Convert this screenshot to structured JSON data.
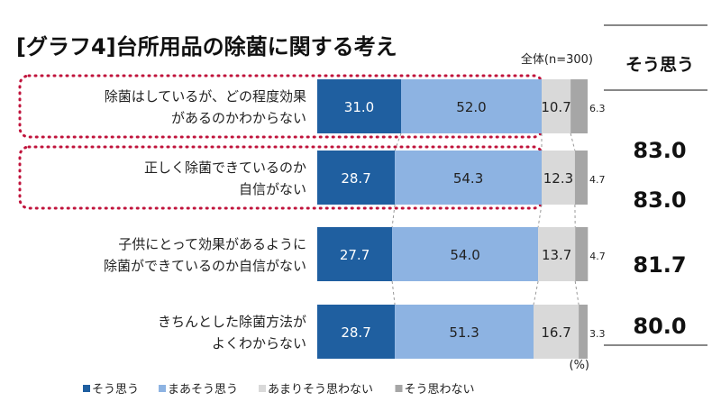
{
  "chart_data": {
    "type": "bar",
    "orientation": "horizontal-stacked",
    "title": "[グラフ4]台所用品の除菌に関する考え",
    "subtitle": "全体(n=300)",
    "unit_label": "(%)",
    "categories": [
      [
        "除菌はしているが、どの程度効果",
        "があるのかわからない"
      ],
      [
        "正しく除菌できているのか",
        "自信がない"
      ],
      [
        "子供にとって効果があるように",
        "除菌ができているのか自信がない"
      ],
      [
        "きちんとした除菌方法が",
        "よくわからない"
      ]
    ],
    "series": [
      {
        "name": "そう思う",
        "color": "#1f5fa0",
        "values": [
          31.0,
          28.7,
          27.7,
          28.7
        ]
      },
      {
        "name": "まあそう思う",
        "color": "#8db3e2",
        "values": [
          52.0,
          54.3,
          54.0,
          51.3
        ]
      },
      {
        "name": "あまりそう思わない",
        "color": "#d9d9d9",
        "values": [
          10.7,
          12.3,
          13.7,
          16.7
        ]
      },
      {
        "name": "そう思わない",
        "color": "#a6a6a6",
        "values": [
          6.3,
          4.7,
          4.7,
          3.3
        ]
      }
    ],
    "summary": {
      "header": "そう思う",
      "values": [
        "83.0",
        "83.0",
        "81.7",
        "80.0"
      ]
    },
    "highlighted_rows": [
      0,
      1
    ],
    "highlight_color": "#c0143c",
    "xlim": [
      0,
      100
    ],
    "legend": "bottom"
  }
}
